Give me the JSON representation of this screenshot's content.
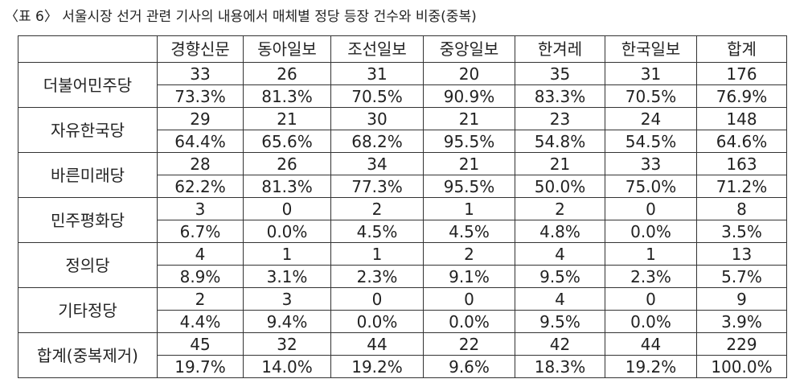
{
  "title": "〈표 6〉 서울시장 선거 관련 기사의 내용에서 매체별 정당 등장 건수와 비중(중복)",
  "table": {
    "columns": [
      "경향신문",
      "동아일보",
      "조선일보",
      "중앙일보",
      "한겨레",
      "한국일보",
      "합계"
    ],
    "rows": [
      {
        "label": "더불어민주당",
        "counts": [
          33,
          26,
          31,
          20,
          35,
          31,
          176
        ],
        "shares": [
          "73.3%",
          "81.3%",
          "70.5%",
          "90.9%",
          "83.3%",
          "70.5%",
          "76.9%"
        ]
      },
      {
        "label": "자유한국당",
        "counts": [
          29,
          21,
          30,
          21,
          23,
          24,
          148
        ],
        "shares": [
          "64.4%",
          "65.6%",
          "68.2%",
          "95.5%",
          "54.8%",
          "54.5%",
          "64.6%"
        ]
      },
      {
        "label": "바른미래당",
        "counts": [
          28,
          26,
          34,
          21,
          21,
          33,
          163
        ],
        "shares": [
          "62.2%",
          "81.3%",
          "77.3%",
          "95.5%",
          "50.0%",
          "75.0%",
          "71.2%"
        ]
      },
      {
        "label": "민주평화당",
        "counts": [
          3,
          0,
          2,
          1,
          2,
          0,
          8
        ],
        "shares": [
          "6.7%",
          "0.0%",
          "4.5%",
          "4.5%",
          "4.8%",
          "0.0%",
          "3.5%"
        ]
      },
      {
        "label": "정의당",
        "counts": [
          4,
          1,
          1,
          2,
          4,
          1,
          13
        ],
        "shares": [
          "8.9%",
          "3.1%",
          "2.3%",
          "9.1%",
          "9.5%",
          "2.3%",
          "5.7%"
        ]
      },
      {
        "label": "기타정당",
        "counts": [
          2,
          3,
          0,
          0,
          4,
          0,
          9
        ],
        "shares": [
          "4.4%",
          "9.4%",
          "0.0%",
          "0.0%",
          "9.5%",
          "0.0%",
          "3.9%"
        ]
      },
      {
        "label": "합계(중복제거)",
        "counts": [
          45,
          32,
          44,
          22,
          42,
          44,
          229
        ],
        "shares": [
          "19.7%",
          "14.0%",
          "19.2%",
          "9.6%",
          "18.3%",
          "19.2%",
          "100.0%"
        ]
      }
    ]
  }
}
